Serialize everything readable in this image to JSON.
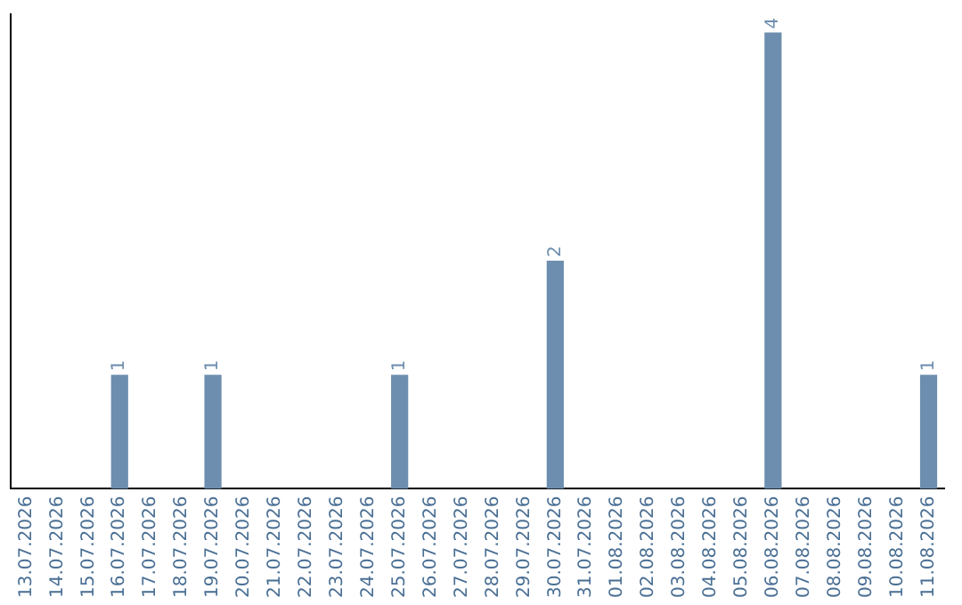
{
  "chart_data": {
    "type": "bar",
    "categories": [
      "13.07.2026",
      "14.07.2026",
      "15.07.2026",
      "16.07.2026",
      "17.07.2026",
      "18.07.2026",
      "19.07.2026",
      "20.07.2026",
      "21.07.2026",
      "22.07.2026",
      "23.07.2026",
      "24.07.2026",
      "25.07.2026",
      "26.07.2026",
      "27.07.2026",
      "28.07.2026",
      "29.07.2026",
      "30.07.2026",
      "31.07.2026",
      "01.08.2026",
      "02.08.2026",
      "03.08.2026",
      "04.08.2026",
      "05.08.2026",
      "06.08.2026",
      "07.08.2026",
      "08.08.2026",
      "09.08.2026",
      "10.08.2026",
      "11.08.2026"
    ],
    "values": [
      0,
      0,
      0,
      1,
      0,
      0,
      1,
      0,
      0,
      0,
      0,
      0,
      1,
      0,
      0,
      0,
      0,
      2,
      0,
      0,
      0,
      0,
      0,
      0,
      4,
      0,
      0,
      0,
      0,
      1
    ],
    "value_labels": [
      null,
      null,
      null,
      "1",
      null,
      null,
      "1",
      null,
      null,
      null,
      null,
      null,
      "1",
      null,
      null,
      null,
      null,
      "2",
      null,
      null,
      null,
      null,
      null,
      null,
      "4",
      null,
      null,
      null,
      null,
      "1"
    ],
    "color": "#6d8eae",
    "ylim": [
      0,
      4.16
    ],
    "grid": false,
    "legend": false,
    "tick_labels": "x"
  }
}
